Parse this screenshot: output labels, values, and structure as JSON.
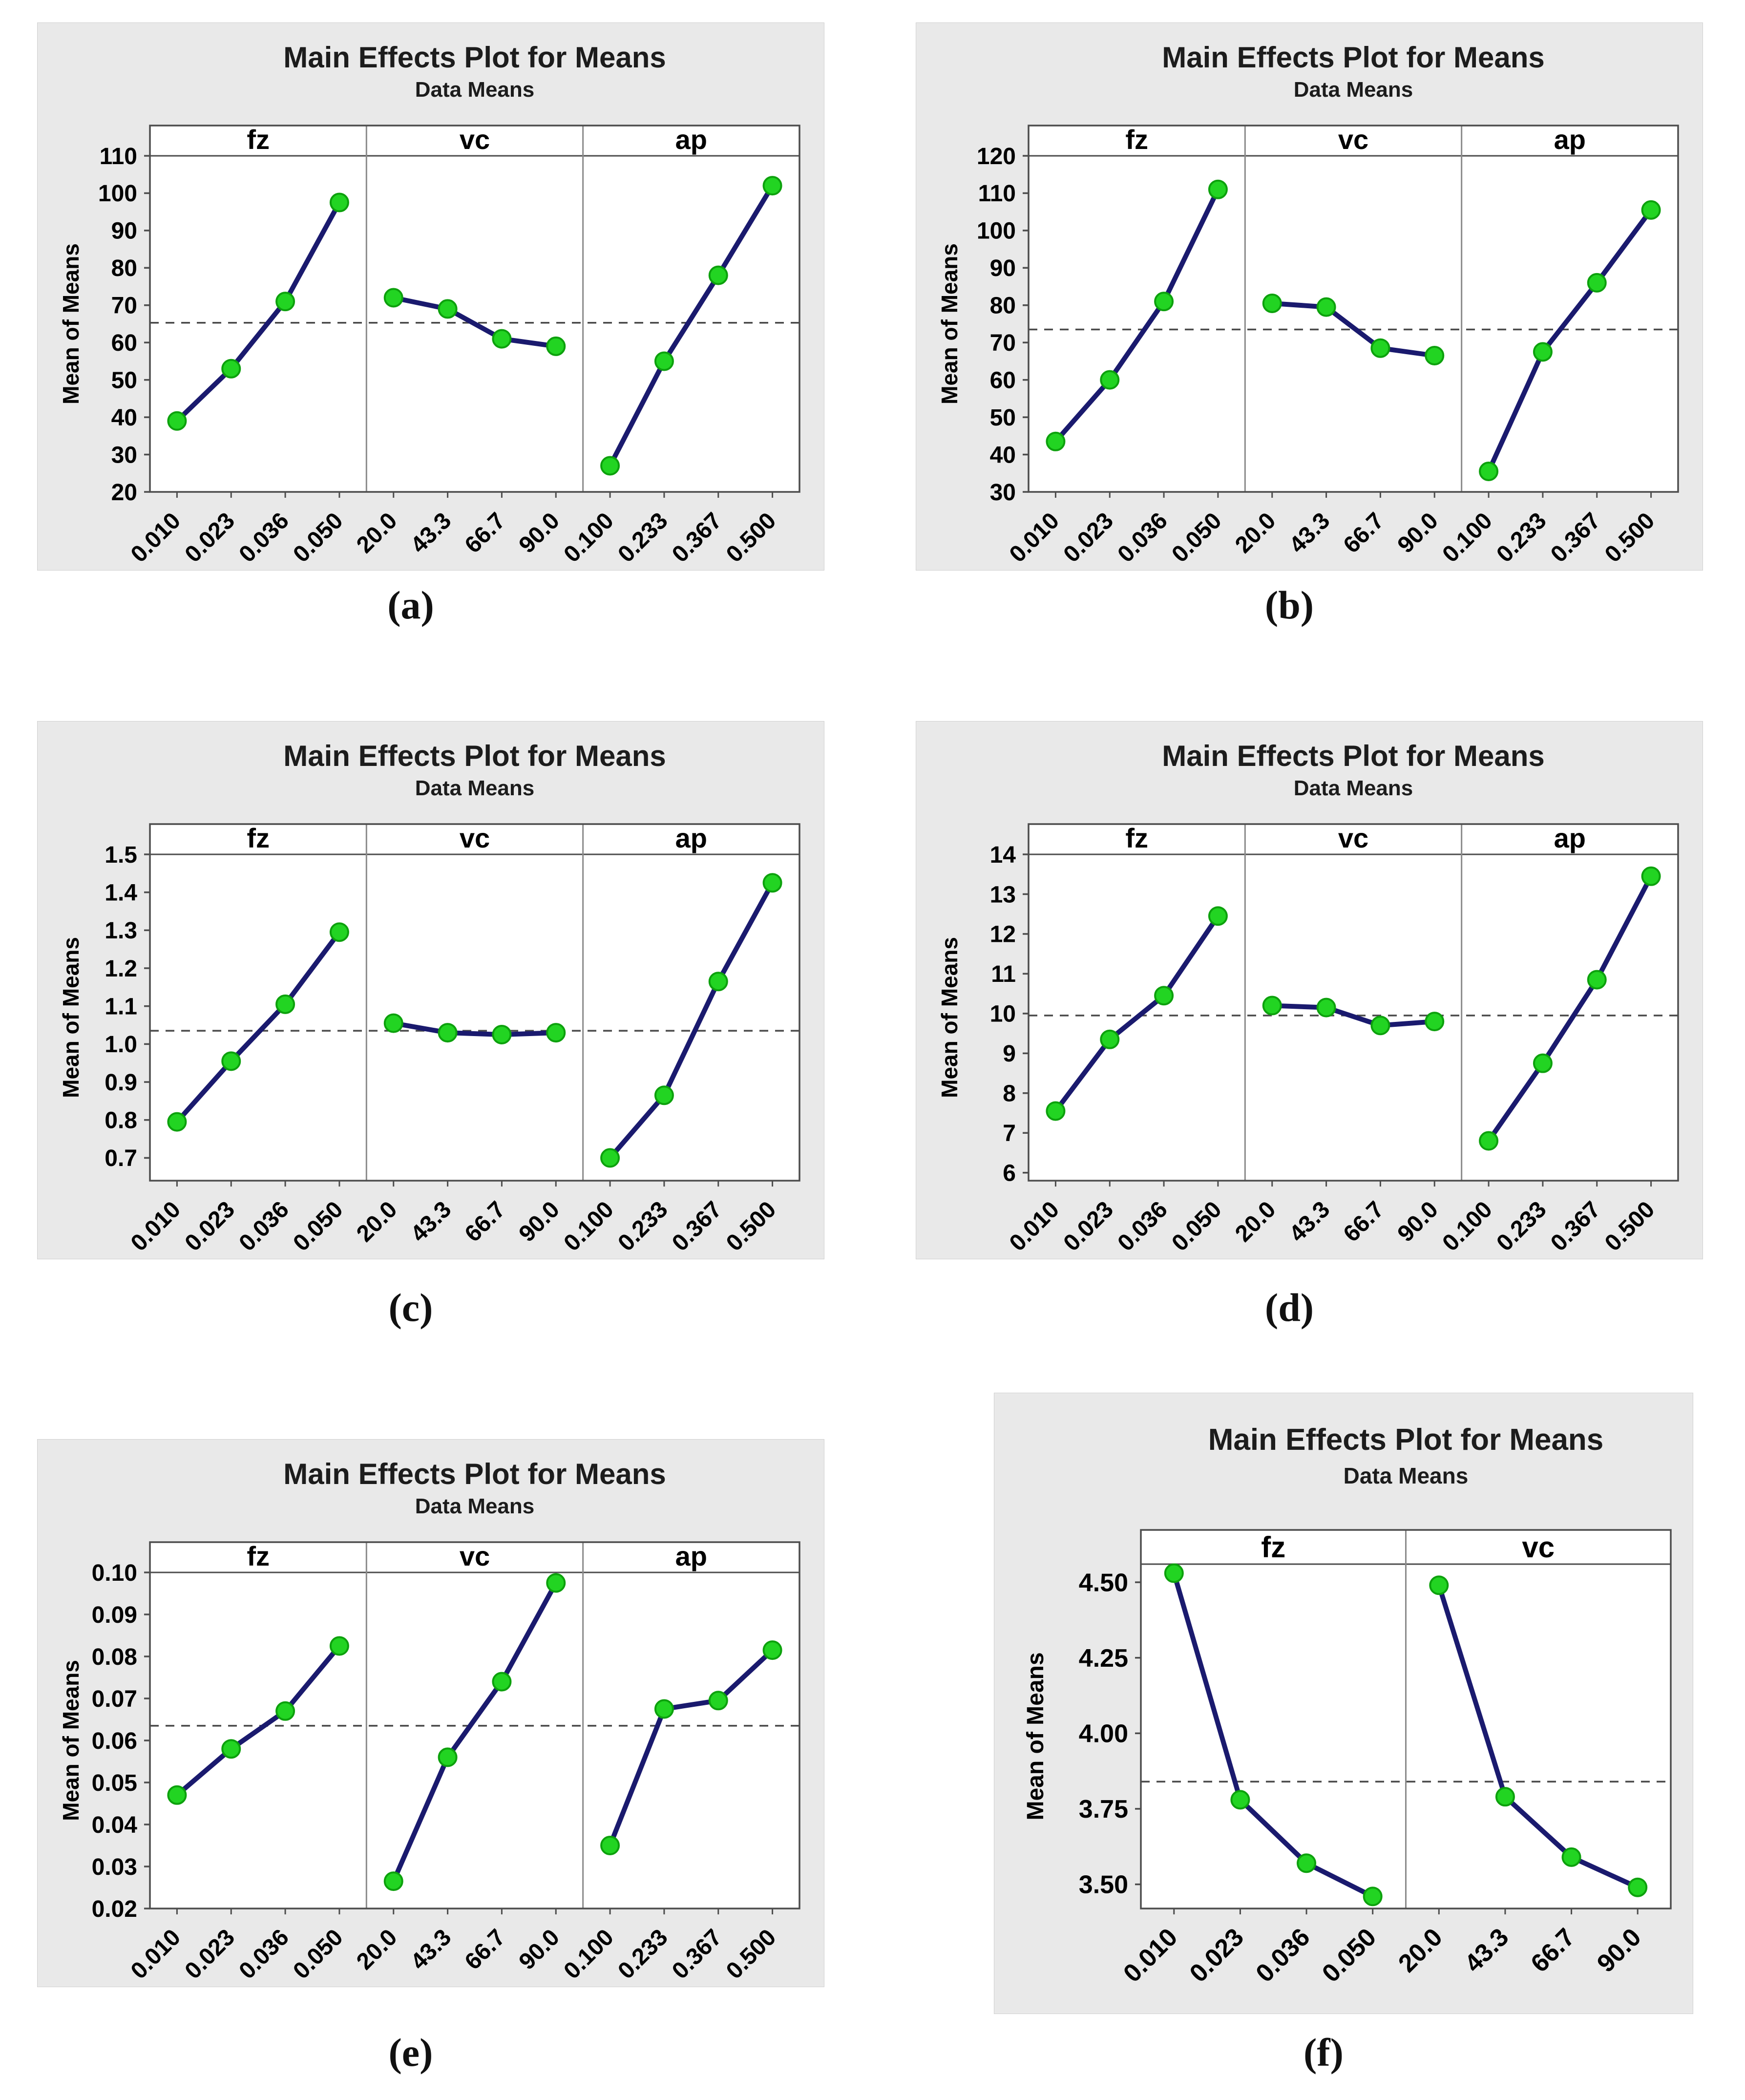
{
  "captions": [
    "(a)",
    "(b)",
    "(c)",
    "(d)",
    "(e)",
    "(f)"
  ],
  "colors": {
    "card_bg": "#e9e9e9",
    "plot_bg": "#ffffff",
    "plot_border": "#4d4d4d",
    "panel_divider": "#8a8a8a",
    "line": "#1a1a6e",
    "marker_fill": "#22d422",
    "marker_stroke": "#0da10d",
    "mean_line": "#4a4a4a",
    "text": "#111111"
  },
  "chart_data": [
    {
      "id": "a",
      "type": "line",
      "title": "Main Effects Plot for Means",
      "subtitle": "Data Means",
      "ylabel": "Mean of Means",
      "ylim": [
        20,
        110
      ],
      "yticks": [
        20,
        30,
        40,
        50,
        60,
        70,
        80,
        90,
        100,
        110
      ],
      "ytick_labels": [
        "20",
        "30",
        "40",
        "50",
        "60",
        "70",
        "80",
        "90",
        "100",
        "110"
      ],
      "mean_line": 65.3,
      "legend": "none",
      "grid": false,
      "panels": [
        {
          "label": "fz",
          "categories": [
            "0.010",
            "0.023",
            "0.036",
            "0.050"
          ],
          "values": [
            39,
            53,
            71,
            97.5
          ]
        },
        {
          "label": "vc",
          "categories": [
            "20.0",
            "43.3",
            "66.7",
            "90.0"
          ],
          "values": [
            72,
            69,
            61,
            59
          ]
        },
        {
          "label": "ap",
          "categories": [
            "0.100",
            "0.233",
            "0.367",
            "0.500"
          ],
          "values": [
            27,
            55,
            78,
            102
          ]
        }
      ]
    },
    {
      "id": "b",
      "type": "line",
      "title": "Main Effects Plot for Means",
      "subtitle": "Data Means",
      "ylabel": "Mean of Means",
      "ylim": [
        30,
        120
      ],
      "yticks": [
        30,
        40,
        50,
        60,
        70,
        80,
        90,
        100,
        110,
        120
      ],
      "ytick_labels": [
        "30",
        "40",
        "50",
        "60",
        "70",
        "80",
        "90",
        "100",
        "110",
        "120"
      ],
      "mean_line": 73.5,
      "legend": "none",
      "grid": false,
      "panels": [
        {
          "label": "fz",
          "categories": [
            "0.010",
            "0.023",
            "0.036",
            "0.050"
          ],
          "values": [
            43.5,
            60,
            81,
            111
          ]
        },
        {
          "label": "vc",
          "categories": [
            "20.0",
            "43.3",
            "66.7",
            "90.0"
          ],
          "values": [
            80.5,
            79.5,
            68.5,
            66.5
          ]
        },
        {
          "label": "ap",
          "categories": [
            "0.100",
            "0.233",
            "0.367",
            "0.500"
          ],
          "values": [
            35.5,
            67.5,
            86,
            105.5
          ]
        }
      ]
    },
    {
      "id": "c",
      "type": "line",
      "title": "Main Effects Plot for Means",
      "subtitle": "Data Means",
      "ylabel": "Mean of Means",
      "ylim": [
        0.64,
        1.5
      ],
      "yticks": [
        0.7,
        0.8,
        0.9,
        1.0,
        1.1,
        1.2,
        1.3,
        1.4,
        1.5
      ],
      "ytick_labels": [
        "0.7",
        "0.8",
        "0.9",
        "1.0",
        "1.1",
        "1.2",
        "1.3",
        "1.4",
        "1.5"
      ],
      "mean_line": 1.035,
      "legend": "none",
      "grid": false,
      "panels": [
        {
          "label": "fz",
          "categories": [
            "0.010",
            "0.023",
            "0.036",
            "0.050"
          ],
          "values": [
            0.795,
            0.955,
            1.105,
            1.295
          ]
        },
        {
          "label": "vc",
          "categories": [
            "20.0",
            "43.3",
            "66.7",
            "90.0"
          ],
          "values": [
            1.055,
            1.03,
            1.025,
            1.03
          ]
        },
        {
          "label": "ap",
          "categories": [
            "0.100",
            "0.233",
            "0.367",
            "0.500"
          ],
          "values": [
            0.7,
            0.865,
            1.165,
            1.425
          ]
        }
      ]
    },
    {
      "id": "d",
      "type": "line",
      "title": "Main Effects Plot for Means",
      "subtitle": "Data Means",
      "ylabel": "Mean of Means",
      "ylim": [
        5.8,
        14
      ],
      "yticks": [
        6,
        7,
        8,
        9,
        10,
        11,
        12,
        13,
        14
      ],
      "ytick_labels": [
        "6",
        "7",
        "8",
        "9",
        "10",
        "11",
        "12",
        "13",
        "14"
      ],
      "mean_line": 9.95,
      "legend": "none",
      "grid": false,
      "panels": [
        {
          "label": "fz",
          "categories": [
            "0.010",
            "0.023",
            "0.036",
            "0.050"
          ],
          "values": [
            7.55,
            9.35,
            10.45,
            12.45
          ]
        },
        {
          "label": "vc",
          "categories": [
            "20.0",
            "43.3",
            "66.7",
            "90.0"
          ],
          "values": [
            10.2,
            10.15,
            9.7,
            9.8
          ]
        },
        {
          "label": "ap",
          "categories": [
            "0.100",
            "0.233",
            "0.367",
            "0.500"
          ],
          "values": [
            6.8,
            8.75,
            10.85,
            13.45
          ]
        }
      ]
    },
    {
      "id": "e",
      "type": "line",
      "title": "Main Effects Plot for Means",
      "subtitle": "Data Means",
      "ylabel": "Mean of Means",
      "ylim": [
        0.02,
        0.1
      ],
      "yticks": [
        0.02,
        0.03,
        0.04,
        0.05,
        0.06,
        0.07,
        0.08,
        0.09,
        0.1
      ],
      "ytick_labels": [
        "0.02",
        "0.03",
        "0.04",
        "0.05",
        "0.06",
        "0.07",
        "0.08",
        "0.09",
        "0.10"
      ],
      "mean_line": 0.0635,
      "legend": "none",
      "grid": false,
      "panels": [
        {
          "label": "fz",
          "categories": [
            "0.010",
            "0.023",
            "0.036",
            "0.050"
          ],
          "values": [
            0.047,
            0.058,
            0.067,
            0.0825
          ]
        },
        {
          "label": "vc",
          "categories": [
            "20.0",
            "43.3",
            "66.7",
            "90.0"
          ],
          "values": [
            0.0265,
            0.056,
            0.074,
            0.0975
          ]
        },
        {
          "label": "ap",
          "categories": [
            "0.100",
            "0.233",
            "0.367",
            "0.500"
          ],
          "values": [
            0.035,
            0.0675,
            0.0695,
            0.0815
          ]
        }
      ]
    },
    {
      "id": "f",
      "type": "line",
      "title": "Main Effects Plot for Means",
      "subtitle": "Data Means",
      "ylabel": "Mean of Means",
      "ylim": [
        3.42,
        4.56
      ],
      "yticks": [
        3.5,
        3.75,
        4.0,
        4.25,
        4.5
      ],
      "ytick_labels": [
        "3.50",
        "3.75",
        "4.00",
        "4.25",
        "4.50"
      ],
      "mean_line": 3.84,
      "legend": "none",
      "grid": false,
      "panels": [
        {
          "label": "fz",
          "categories": [
            "0.010",
            "0.023",
            "0.036",
            "0.050"
          ],
          "values": [
            4.53,
            3.78,
            3.57,
            3.46
          ]
        },
        {
          "label": "vc",
          "categories": [
            "20.0",
            "43.3",
            "66.7",
            "90.0"
          ],
          "values": [
            4.49,
            3.79,
            3.59,
            3.49
          ]
        }
      ]
    }
  ]
}
